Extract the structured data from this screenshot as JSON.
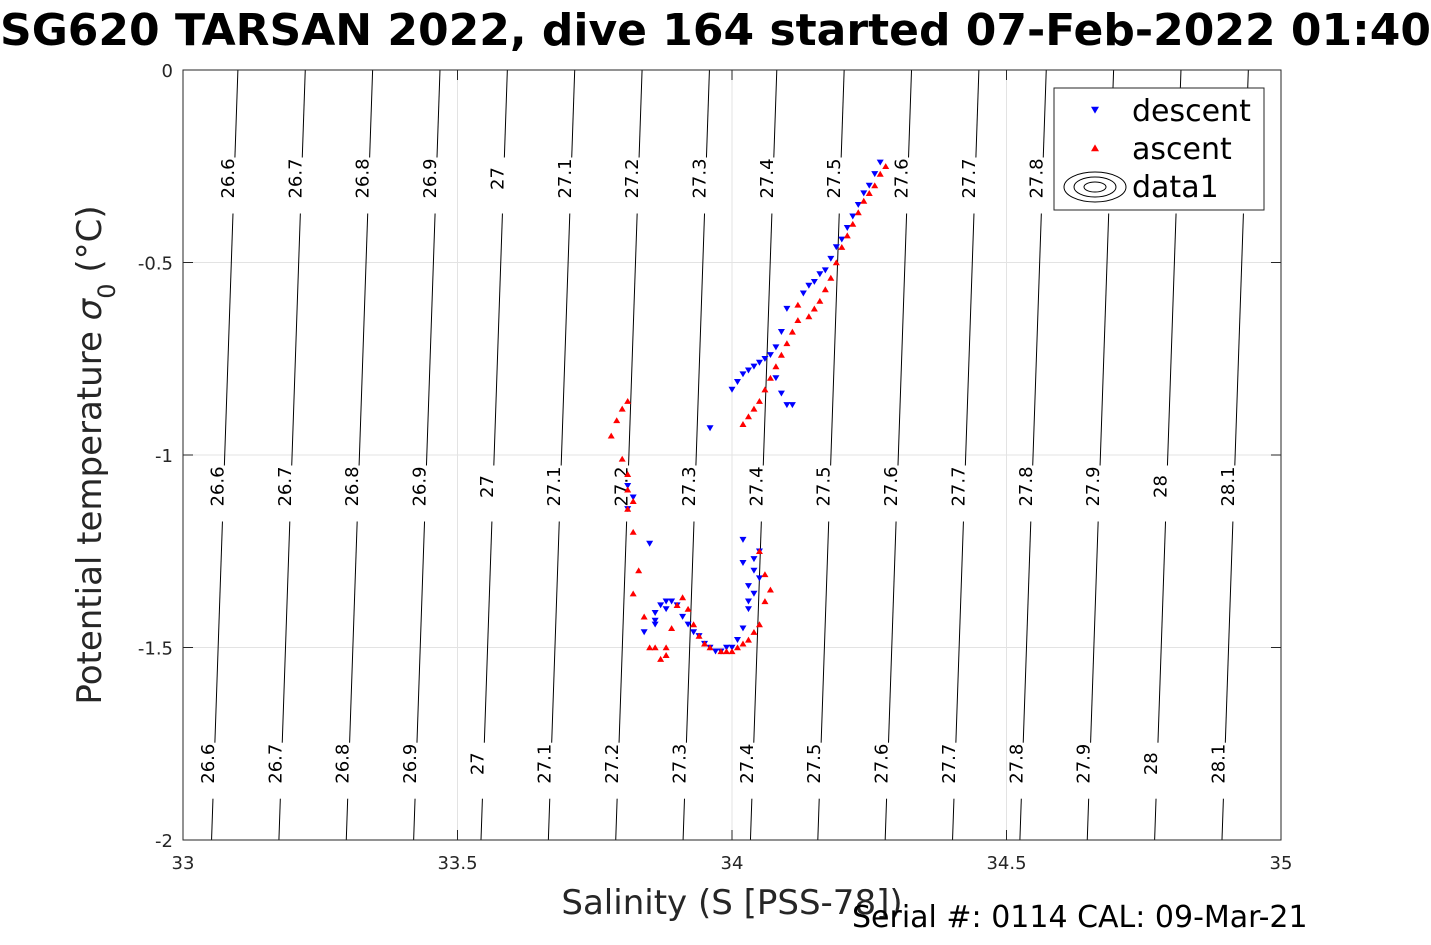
{
  "header": {
    "title": "SG620 TARSAN 2022, dive 164 started 07-Feb-2022 01:40"
  },
  "footer": {
    "serial": "Serial #: 0114  CAL: 09-Mar-21"
  },
  "chart_data": {
    "type": "scatter",
    "xlabel": "Salinity (S [PSS-78])",
    "ylabel": "Potential temperature σ_0 (°C)",
    "xlim": [
      33,
      35
    ],
    "ylim": [
      -2,
      0
    ],
    "xticks": [
      33,
      33.5,
      34,
      34.5,
      35
    ],
    "yticks": [
      -2,
      -1.5,
      -1,
      -0.5,
      0
    ],
    "xtick_labels": [
      "33",
      "33.5",
      "34",
      "34.5",
      "35"
    ],
    "ytick_labels": [
      "-2",
      "-1.5",
      "-1",
      "-0.5",
      "0"
    ],
    "grid": true,
    "legend_position": "top-right",
    "contours": {
      "levels": [
        26.6,
        26.7,
        26.8,
        26.9,
        27,
        27.1,
        27.2,
        27.3,
        27.4,
        27.5,
        27.6,
        27.7,
        27.8,
        27.9,
        28,
        28.1
      ],
      "labels": [
        "26.6",
        "26.7",
        "26.8",
        "26.9",
        "27",
        "27.1",
        "27.2",
        "27.3",
        "27.4",
        "27.5",
        "27.6",
        "27.7",
        "27.8",
        "27.9",
        "28",
        "28.1"
      ]
    },
    "series": [
      {
        "name": "descent",
        "marker": "triangle-down",
        "color": "#0000ff",
        "x": [
          34.27,
          34.26,
          34.25,
          34.24,
          34.23,
          34.22,
          34.21,
          34.2,
          34.19,
          34.18,
          34.17,
          34.16,
          34.15,
          34.14,
          34.13,
          34.1,
          34.09,
          34.08,
          34.07,
          34.06,
          34.05,
          34.04,
          34.03,
          34.02,
          34.01,
          34.0,
          34.08,
          34.09,
          34.1,
          34.11,
          33.96,
          33.81,
          33.82,
          33.81,
          33.86,
          33.86,
          33.87,
          33.88,
          33.89,
          33.9,
          33.91,
          33.92,
          33.93,
          33.94,
          33.95,
          33.96,
          33.97,
          33.98,
          33.99,
          34.0,
          34.01,
          34.02,
          34.03,
          34.03,
          34.04,
          34.04,
          34.05,
          34.05,
          34.04,
          34.03,
          34.02,
          34.02,
          33.85,
          33.84,
          33.86,
          33.88
        ],
        "y": [
          -0.24,
          -0.27,
          -0.3,
          -0.32,
          -0.35,
          -0.38,
          -0.41,
          -0.44,
          -0.46,
          -0.49,
          -0.52,
          -0.53,
          -0.55,
          -0.56,
          -0.58,
          -0.62,
          -0.68,
          -0.72,
          -0.74,
          -0.75,
          -0.76,
          -0.77,
          -0.78,
          -0.79,
          -0.81,
          -0.83,
          -0.8,
          -0.84,
          -0.87,
          -0.87,
          -0.93,
          -1.08,
          -1.11,
          -1.14,
          -1.43,
          -1.41,
          -1.39,
          -1.38,
          -1.38,
          -1.39,
          -1.42,
          -1.44,
          -1.46,
          -1.47,
          -1.49,
          -1.5,
          -1.51,
          -1.51,
          -1.5,
          -1.5,
          -1.48,
          -1.45,
          -1.4,
          -1.34,
          -1.3,
          -1.27,
          -1.25,
          -1.32,
          -1.36,
          -1.38,
          -1.22,
          -1.28,
          -1.23,
          -1.46,
          -1.44,
          -1.4
        ]
      },
      {
        "name": "ascent",
        "marker": "triangle-up",
        "color": "#ff0000",
        "x": [
          34.28,
          34.27,
          34.26,
          34.25,
          34.24,
          34.23,
          34.22,
          34.21,
          34.2,
          34.19,
          34.18,
          34.17,
          34.16,
          34.15,
          34.12,
          34.11,
          34.1,
          34.09,
          34.08,
          34.07,
          34.06,
          34.05,
          34.04,
          34.03,
          34.02,
          34.14,
          34.12,
          33.78,
          33.79,
          33.8,
          33.81,
          33.8,
          33.81,
          33.81,
          33.82,
          33.81,
          33.82,
          33.83,
          33.82,
          33.84,
          33.85,
          33.87,
          33.88,
          33.89,
          33.9,
          33.91,
          33.92,
          33.93,
          33.94,
          33.95,
          33.96,
          33.98,
          33.99,
          34.0,
          34.01,
          34.02,
          34.03,
          34.04,
          34.05,
          34.06,
          34.07,
          34.06,
          34.05,
          33.86,
          33.88
        ],
        "y": [
          -0.25,
          -0.27,
          -0.3,
          -0.32,
          -0.34,
          -0.37,
          -0.4,
          -0.43,
          -0.46,
          -0.5,
          -0.54,
          -0.57,
          -0.6,
          -0.62,
          -0.65,
          -0.68,
          -0.71,
          -0.74,
          -0.77,
          -0.8,
          -0.83,
          -0.86,
          -0.88,
          -0.9,
          -0.92,
          -0.64,
          -0.61,
          -0.95,
          -0.91,
          -0.88,
          -0.86,
          -1.01,
          -1.05,
          -1.09,
          -1.12,
          -1.14,
          -1.2,
          -1.3,
          -1.36,
          -1.42,
          -1.5,
          -1.53,
          -1.5,
          -1.45,
          -1.39,
          -1.37,
          -1.4,
          -1.44,
          -1.47,
          -1.49,
          -1.5,
          -1.51,
          -1.51,
          -1.51,
          -1.5,
          -1.49,
          -1.48,
          -1.46,
          -1.44,
          -1.38,
          -1.35,
          -1.31,
          -1.25,
          -1.5,
          -1.52
        ]
      },
      {
        "name": "data1",
        "marker": "contour",
        "color": "#000000"
      }
    ]
  }
}
